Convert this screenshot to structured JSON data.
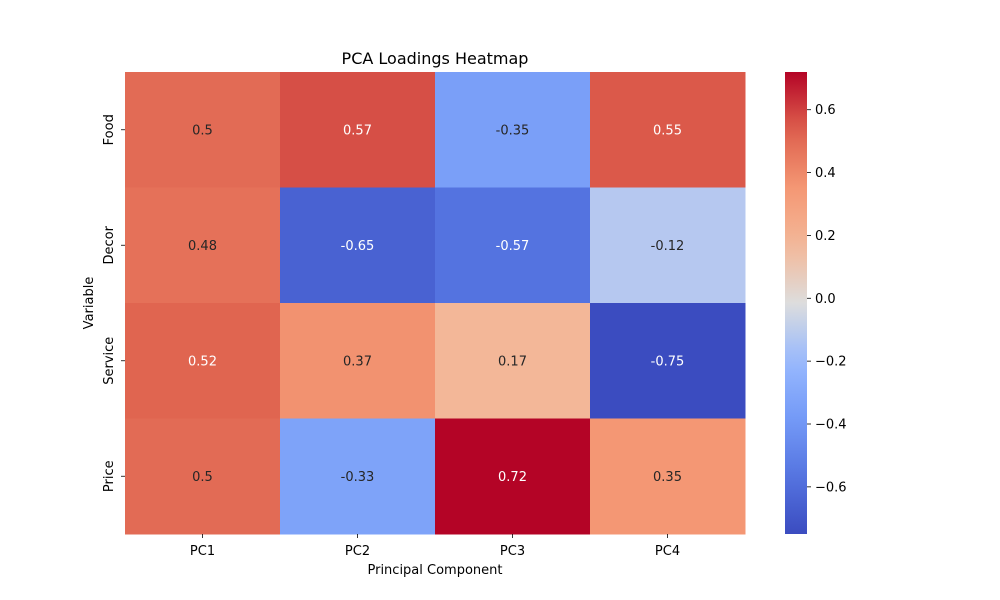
{
  "chart_data": {
    "type": "heatmap",
    "title": "PCA Loadings Heatmap",
    "xlabel": "Principal Component",
    "ylabel": "Variable",
    "x": [
      "PC1",
      "PC2",
      "PC3",
      "PC4"
    ],
    "y": [
      "Food",
      "Decor",
      "Service",
      "Price"
    ],
    "values": [
      [
        0.5,
        0.57,
        -0.35,
        0.55
      ],
      [
        0.48,
        -0.65,
        -0.57,
        -0.12
      ],
      [
        0.52,
        0.37,
        0.17,
        -0.75
      ],
      [
        0.5,
        -0.33,
        0.72,
        0.35
      ]
    ],
    "annotations": [
      [
        "0.5",
        "0.57",
        "-0.35",
        "0.55"
      ],
      [
        "0.48",
        "-0.65",
        "-0.57",
        "-0.12"
      ],
      [
        "0.52",
        "0.37",
        "0.17",
        "-0.75"
      ],
      [
        "0.5",
        "-0.33",
        "0.72",
        "0.35"
      ]
    ],
    "colormap": "coolwarm",
    "vmin": -0.75,
    "vmax": 0.72,
    "colorbar_ticks": [
      0.6,
      0.4,
      0.2,
      0.0,
      -0.2,
      -0.4,
      -0.6
    ],
    "colorbar_tick_labels": [
      "0.6",
      "0.4",
      "0.2",
      "0.0",
      "−0.2",
      "−0.4",
      "−0.6"
    ],
    "colors": {
      "low": "#3b4cc0",
      "mid": "#dddddd",
      "high": "#b40426"
    }
  }
}
